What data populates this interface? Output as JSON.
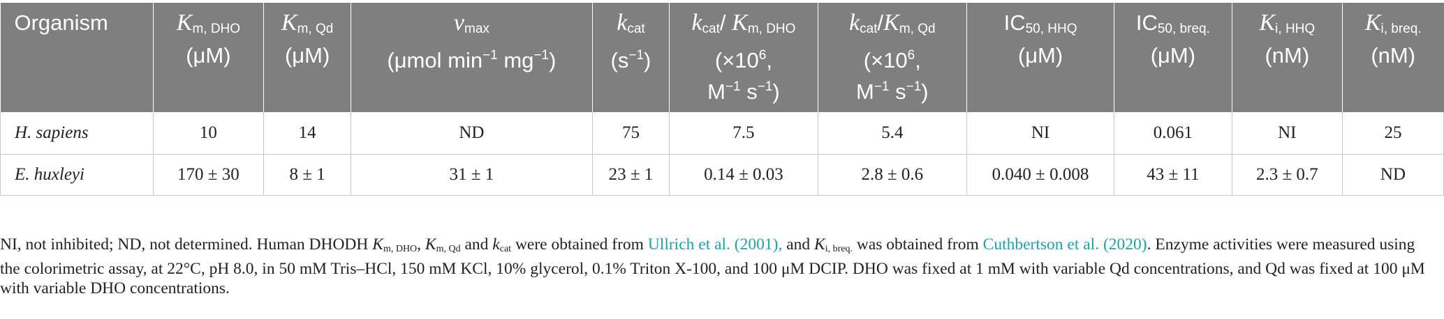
{
  "table": {
    "headers": {
      "organism": "Organism",
      "km_dho": {
        "sym": "K",
        "sub": "m, DHO",
        "unit": "(μM)"
      },
      "km_qd": {
        "sym": "K",
        "sub": "m, Qd",
        "unit": "(μM)"
      },
      "vmax": {
        "sym": "v",
        "sub": "max",
        "unit_a": "(μmol min",
        "sup_a": "−1",
        "unit_b": " mg",
        "sup_b": "−1",
        "unit_c": ")"
      },
      "kcat": {
        "sym": "k",
        "sub": "cat",
        "unit_a": "(s",
        "sup_a": "−1",
        "unit_b": ")"
      },
      "kcat_km_dho": {
        "sym": "k",
        "sub": "cat",
        "slash": "/ ",
        "sym2": "K",
        "sub2": "m, DHO",
        "line2a": "(×10",
        "line2sup": "6",
        "line2b": ",",
        "line3a": "M",
        "line3sup": "−1",
        "line3b": " s",
        "line3sup2": "−1",
        "line3c": ")"
      },
      "kcat_km_qd": {
        "sym": "k",
        "sub": "cat",
        "slash": "/",
        "sym2": "K",
        "sub2": "m, Qd",
        "line2a": "(×10",
        "line2sup": "6",
        "line2b": ",",
        "line3a": "M",
        "line3sup": "−1",
        "line3b": " s",
        "line3sup2": "−1",
        "line3c": ")"
      },
      "ic50_hhq": {
        "sym": "IC",
        "sub": "50, HHQ",
        "unit": "(μM)"
      },
      "ic50_breq": {
        "sym": "IC",
        "sub": "50, breq.",
        "unit": "(μM)"
      },
      "ki_hhq": {
        "sym": "K",
        "sub": "i, HHQ",
        "unit": "(nM)"
      },
      "ki_breq": {
        "sym": "K",
        "sub": "i, breq.",
        "unit": "(nM)"
      }
    },
    "rows": [
      {
        "organism": "H. sapiens",
        "km_dho": "10",
        "km_qd": "14",
        "vmax": "ND",
        "kcat": "75",
        "kcat_km_dho": "7.5",
        "kcat_km_qd": "5.4",
        "ic50_hhq": "NI",
        "ic50_breq": "0.061",
        "ki_hhq": "NI",
        "ki_breq": "25"
      },
      {
        "organism": "E. huxleyi",
        "km_dho": "170 ± 30",
        "km_qd": "8 ± 1",
        "vmax": "31 ± 1",
        "kcat": "23 ± 1",
        "kcat_km_dho": "0.14 ± 0.03",
        "kcat_km_qd": "2.8 ± 0.6",
        "ic50_hhq": "0.040 ± 0.008",
        "ic50_breq": "43 ± 11",
        "ki_hhq": "2.3 ± 0.7",
        "ki_breq": "ND"
      }
    ]
  },
  "footnote": {
    "p1": "NI, not inhibited; ND, not determined. Human DHODH ",
    "km1_sym": "K",
    "km1_sub": "m, DHO",
    "sep1": ", ",
    "km2_sym": "K",
    "km2_sub": "m, Qd",
    "p2": " and ",
    "kcat_sym": "k",
    "kcat_sub": "cat",
    "p3": " were obtained from ",
    "ref1": "Ullrich et al. (2001),",
    "p4": " and ",
    "ki_sym": "K",
    "ki_sub": "i, breq.",
    "p5": " was obtained from ",
    "ref2": "Cuthbertson et al. (2020)",
    "p6": ". Enzyme activities were measured using the colorimetric assay, at 22°C, pH 8.0, in 50 mM Tris–HCl, 150 mM KCl, 10% glycerol, 0.1% Triton X-100, and 100 μM DCIP. DHO was fixed at 1 mM with variable Qd concentrations, and Qd was fixed at 100 μM with variable DHO concentrations."
  },
  "colors": {
    "header_bg": "#7f7f7f",
    "link": "#1aa3b0",
    "grid": "#c8c8c8"
  }
}
